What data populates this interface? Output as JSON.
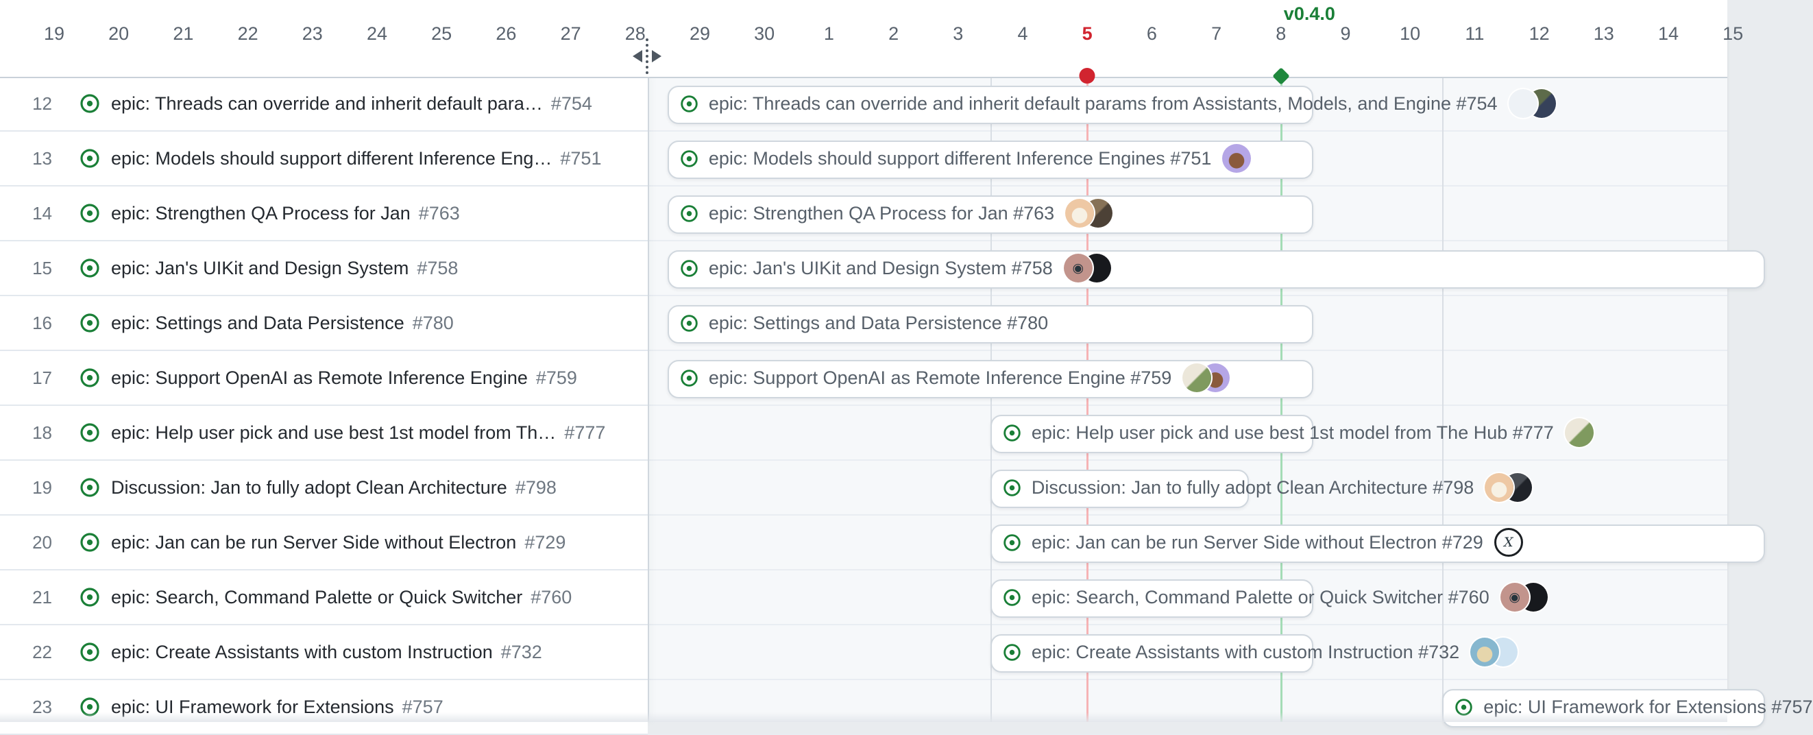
{
  "timeline": {
    "days": [
      "19",
      "20",
      "21",
      "22",
      "23",
      "24",
      "25",
      "26",
      "27",
      "28",
      "29",
      "30",
      "1",
      "2",
      "3",
      "4",
      "5",
      "6",
      "7",
      "8",
      "9",
      "10",
      "11",
      "12",
      "13",
      "14",
      "15"
    ],
    "today_label": "5",
    "today_index": 16,
    "milestone": {
      "label": "v0.4.0",
      "day_label": "8",
      "day_index": 19
    },
    "week_start_indices": [
      15,
      22
    ],
    "colors": {
      "today_red": "#d1242f",
      "today_line": "#f6b3b5",
      "milestone_green": "#1a7f37",
      "milestone_line": "#a4dcb6",
      "open_issue_green": "#1a7f37",
      "timeline_bg": "#f6f8fa",
      "pill_border": "#d0d7de"
    }
  },
  "rows": [
    {
      "num": "12",
      "sidebar_title": "epic: Threads can override and inherit default para…",
      "issue": "#754",
      "bar_title": "epic: Threads can override and inherit default params from Assistants, Models, and Engine #754",
      "start": 10,
      "end": 20,
      "avatars": [
        {
          "name": "pixel-identicon-avatar",
          "bg": "#eef2f6",
          "pixel": true
        },
        {
          "name": "photo-avatar",
          "bg": "#5d6b4a",
          "bg2": "#36415a"
        }
      ]
    },
    {
      "num": "13",
      "sidebar_title": "epic: Models should support different Inference Eng…",
      "issue": "#751",
      "bar_title": "epic: Models should support different Inference Engines #751",
      "start": 10,
      "end": 20,
      "avatars": [
        {
          "name": "purple-face-avatar",
          "bg": "#b5a6e6",
          "center": "#8a5a3c"
        }
      ]
    },
    {
      "num": "14",
      "sidebar_title": "epic: Strengthen QA Process for Jan",
      "issue": "#763",
      "bar_title": "epic: Strengthen QA Process for Jan #763",
      "start": 10,
      "end": 20,
      "avatars": [
        {
          "name": "cartoon-face-avatar",
          "bg": "#eec8a4",
          "center": "#f7f1e4"
        },
        {
          "name": "photo-avatar",
          "bg": "#877257",
          "bg2": "#4c4136"
        }
      ]
    },
    {
      "num": "15",
      "sidebar_title": "epic: Jan's UIKit and Design System",
      "issue": "#758",
      "bar_title": "epic: Jan's UIKit and Design System #758",
      "start": 10,
      "end": 27,
      "avatars": [
        {
          "name": "eye-avatar",
          "bg": "#c2948c",
          "glyph": "◉"
        },
        {
          "name": "dark-avatar",
          "bg": "#17191d"
        }
      ]
    },
    {
      "num": "16",
      "sidebar_title": "epic: Settings and Data Persistence",
      "issue": "#780",
      "bar_title": "epic: Settings and Data Persistence #780",
      "start": 10,
      "end": 20,
      "avatars": []
    },
    {
      "num": "17",
      "sidebar_title": "epic: Support OpenAI as Remote Inference Engine",
      "issue": "#759",
      "bar_title": "epic: Support OpenAI as Remote Inference Engine #759",
      "start": 10,
      "end": 20,
      "avatars": [
        {
          "name": "cat-photo-avatar",
          "bg": "#ece7da",
          "bg2": "#7f9a5f"
        },
        {
          "name": "purple-face-avatar",
          "bg": "#b5a6e6",
          "center": "#8a5a3c"
        }
      ]
    },
    {
      "num": "18",
      "sidebar_title": "epic: Help user pick and use best 1st model from Th…",
      "issue": "#777",
      "bar_title": "epic: Help user pick and use best 1st model from The Hub #777",
      "start": 15,
      "end": 20,
      "avatars": [
        {
          "name": "cat-photo-avatar",
          "bg": "#ece7da",
          "bg2": "#7f9a5f"
        }
      ]
    },
    {
      "num": "19",
      "sidebar_title": "Discussion: Jan to fully adopt Clean Architecture",
      "issue": "#798",
      "bar_title": "Discussion: Jan to fully adopt Clean Architecture #798",
      "start": 15,
      "end": 19,
      "avatars": [
        {
          "name": "cartoon-face-avatar",
          "bg": "#eec8a4",
          "center": "#f7f1e4"
        },
        {
          "name": "dark-photo-avatar",
          "bg": "#4a4e55",
          "bg2": "#202329"
        }
      ]
    },
    {
      "num": "20",
      "sidebar_title": "epic: Jan can be run Server Side without Electron",
      "issue": "#729",
      "bar_title": "epic: Jan can be run Server Side without Electron #729",
      "start": 15,
      "end": 27,
      "avatars": [
        {
          "name": "signature-logo-avatar",
          "bg": "#fcfcfc",
          "glyph": "X",
          "border": true
        }
      ]
    },
    {
      "num": "21",
      "sidebar_title": "epic: Search, Command Palette or Quick Switcher",
      "issue": "#760",
      "bar_title": "epic: Search, Command Palette or Quick Switcher #760",
      "start": 15,
      "end": 20,
      "avatars": [
        {
          "name": "eye-avatar",
          "bg": "#c2948c",
          "glyph": "◉"
        },
        {
          "name": "dark-avatar",
          "bg": "#17191d"
        }
      ]
    },
    {
      "num": "22",
      "sidebar_title": "epic: Create Assistants with custom Instruction",
      "issue": "#732",
      "bar_title": "epic: Create Assistants with custom Instruction #732",
      "start": 15,
      "end": 20,
      "avatars": [
        {
          "name": "cat-cartoon-avatar",
          "bg": "#86b7cf",
          "center": "#e6d6ac"
        },
        {
          "name": "pixel-identicon-avatar",
          "bg": "#cfe3f2",
          "pixel": true
        }
      ]
    },
    {
      "num": "23",
      "sidebar_title": "epic: UI Framework for Extensions",
      "issue": "#757",
      "bar_title": "epic: UI Framework for Extensions #757",
      "start": 22,
      "end": 27,
      "avatars": []
    }
  ]
}
